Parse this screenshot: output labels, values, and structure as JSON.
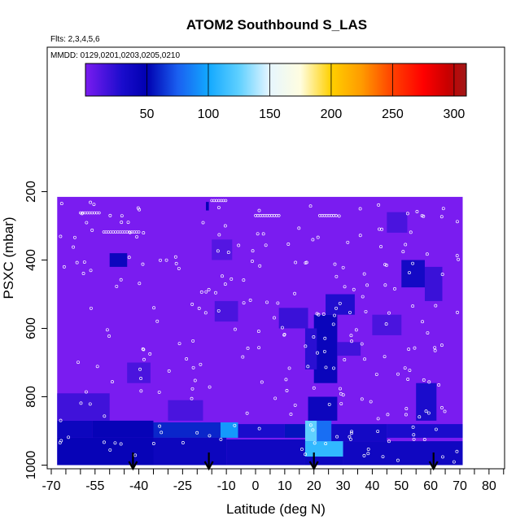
{
  "chart_data": {
    "type": "heatmap",
    "title": "ATOM2 Southbound S_LAS",
    "subtitle_flights": "Flts: 2,3,4,5,6",
    "subtitle_dates": "MMDD: 0129,0201,0203,0205,0210",
    "xlabel": "Latitude (deg N)",
    "ylabel": "PSXC (mbar)",
    "xlim": [
      -70,
      85
    ],
    "ylim_reversed": [
      1000,
      0
    ],
    "x_ticks": [
      -70,
      -55,
      -40,
      -25,
      -10,
      0,
      10,
      20,
      30,
      40,
      50,
      60,
      70,
      80
    ],
    "x_tick_labels": [
      "-70",
      "-55",
      "-40",
      "-25",
      "-10",
      "0",
      "10",
      "20",
      "30",
      "40",
      "50",
      "60",
      "70",
      "80"
    ],
    "y_ticks": [
      200,
      400,
      600,
      800,
      1000
    ],
    "y_tick_labels": [
      "200",
      "400",
      "600",
      "800",
      "1000"
    ],
    "colorbar": {
      "range": [
        0,
        310
      ],
      "ticks": [
        50,
        100,
        150,
        200,
        250,
        300
      ],
      "tick_labels": [
        "50",
        "100",
        "150",
        "200",
        "250",
        "300"
      ],
      "stops": [
        {
          "value": 0,
          "color": "#7a1cf0"
        },
        {
          "value": 30,
          "color": "#1a0ccc"
        },
        {
          "value": 50,
          "color": "#0000b0"
        },
        {
          "value": 75,
          "color": "#1a5ff0"
        },
        {
          "value": 100,
          "color": "#12a8ff"
        },
        {
          "value": 125,
          "color": "#5fd0ff"
        },
        {
          "value": 150,
          "color": "#e6f6ff"
        },
        {
          "value": 175,
          "color": "#fffde0"
        },
        {
          "value": 200,
          "color": "#ffd000"
        },
        {
          "value": 225,
          "color": "#ff9a00"
        },
        {
          "value": 250,
          "color": "#ff4000"
        },
        {
          "value": 275,
          "color": "#ff0000"
        },
        {
          "value": 295,
          "color": "#c80000"
        },
        {
          "value": 310,
          "color": "#a01818"
        }
      ]
    },
    "background_color": "#7a1cf0",
    "region": {
      "lat_range": [
        -68,
        71
      ],
      "p_top": 215,
      "p_bottom": 1000
    },
    "cells": [
      {
        "lat0": -68,
        "lat1": -56,
        "p0": 870,
        "p1": 920,
        "value": 40
      },
      {
        "lat0": -56,
        "lat1": -35,
        "p0": 870,
        "p1": 920,
        "value": 45
      },
      {
        "lat0": -35,
        "lat1": -12,
        "p0": 875,
        "p1": 920,
        "value": 60
      },
      {
        "lat0": -12,
        "lat1": -6,
        "p0": 875,
        "p1": 920,
        "value": 95
      },
      {
        "lat0": -6,
        "lat1": 10,
        "p0": 880,
        "p1": 920,
        "value": 30
      },
      {
        "lat0": 10,
        "lat1": 17,
        "p0": 880,
        "p1": 920,
        "value": 55
      },
      {
        "lat0": 17,
        "lat1": 21,
        "p0": 870,
        "p1": 930,
        "value": 125
      },
      {
        "lat0": 21,
        "lat1": 26,
        "p0": 870,
        "p1": 930,
        "value": 80
      },
      {
        "lat0": 26,
        "lat1": 45,
        "p0": 880,
        "p1": 930,
        "value": 35
      },
      {
        "lat0": 45,
        "lat1": 71,
        "p0": 880,
        "p1": 920,
        "value": 30
      },
      {
        "lat0": -68,
        "lat1": -35,
        "p0": 920,
        "p1": 1000,
        "value": 45
      },
      {
        "lat0": -35,
        "lat1": -10,
        "p0": 920,
        "p1": 1000,
        "value": 40
      },
      {
        "lat0": -10,
        "lat1": 17,
        "p0": 925,
        "p1": 1000,
        "value": 38
      },
      {
        "lat0": 17,
        "lat1": 30,
        "p0": 930,
        "p1": 975,
        "value": 110
      },
      {
        "lat0": 17,
        "lat1": 30,
        "p0": 975,
        "p1": 1000,
        "value": 40
      },
      {
        "lat0": 30,
        "lat1": 71,
        "p0": 930,
        "p1": 1000,
        "value": 38
      },
      {
        "lat0": -68,
        "lat1": -50,
        "p0": 790,
        "p1": 870,
        "value": 18
      },
      {
        "lat0": -30,
        "lat1": -18,
        "p0": 810,
        "p1": 870,
        "value": 15
      },
      {
        "lat0": 18,
        "lat1": 28,
        "p0": 800,
        "p1": 870,
        "value": 40
      },
      {
        "lat0": 55,
        "lat1": 62,
        "p0": 760,
        "p1": 870,
        "value": 30
      },
      {
        "lat0": 20,
        "lat1": 28,
        "p0": 560,
        "p1": 760,
        "value": 42
      },
      {
        "lat0": 17,
        "lat1": 21,
        "p0": 600,
        "p1": 720,
        "value": 25
      },
      {
        "lat0": 8,
        "lat1": 18,
        "p0": 540,
        "p1": 600,
        "value": 20
      },
      {
        "lat0": 28,
        "lat1": 36,
        "p0": 640,
        "p1": 680,
        "value": 18
      },
      {
        "lat0": 24,
        "lat1": 34,
        "p0": 500,
        "p1": 560,
        "value": 28
      },
      {
        "lat0": 50,
        "lat1": 58,
        "p0": 400,
        "p1": 480,
        "value": 35
      },
      {
        "lat0": 58,
        "lat1": 64,
        "p0": 420,
        "p1": 520,
        "value": 20
      },
      {
        "lat0": 40,
        "lat1": 50,
        "p0": 560,
        "p1": 620,
        "value": 15
      },
      {
        "lat0": -50,
        "lat1": -44,
        "p0": 380,
        "p1": 420,
        "value": 40
      },
      {
        "lat0": -14,
        "lat1": -6,
        "p0": 520,
        "p1": 580,
        "value": 15
      },
      {
        "lat0": -44,
        "lat1": -36,
        "p0": 700,
        "p1": 760,
        "value": 15
      },
      {
        "lat0": 45,
        "lat1": 52,
        "p0": 260,
        "p1": 320,
        "value": 15
      },
      {
        "lat0": -17,
        "lat1": -16,
        "p0": 230,
        "p1": 255,
        "value": 45
      },
      {
        "lat0": -15,
        "lat1": -8,
        "p0": 340,
        "p1": 400,
        "value": 12
      }
    ],
    "arrow_latitudes": [
      -42,
      -16,
      20,
      61
    ]
  }
}
